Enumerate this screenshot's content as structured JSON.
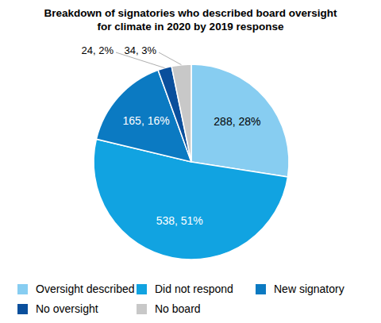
{
  "chart_data": {
    "type": "pie",
    "title": "Breakdown of signatories who described board oversight for climate in 2020 by 2019 response",
    "categories": [
      "Oversight described",
      "Did not respond",
      "New signatory",
      "No oversight",
      "No board"
    ],
    "values": [
      288,
      538,
      165,
      24,
      34
    ],
    "value_labels": [
      "288, 28%",
      "538, 51%",
      "165, 16%",
      "24, 2%",
      "34, 3%"
    ],
    "colors": [
      "#87cdf1",
      "#11a3e1",
      "#0b7ac2",
      "#0a4f9c",
      "#c8c8c8"
    ],
    "data_labels": true,
    "legend": "bottom"
  }
}
